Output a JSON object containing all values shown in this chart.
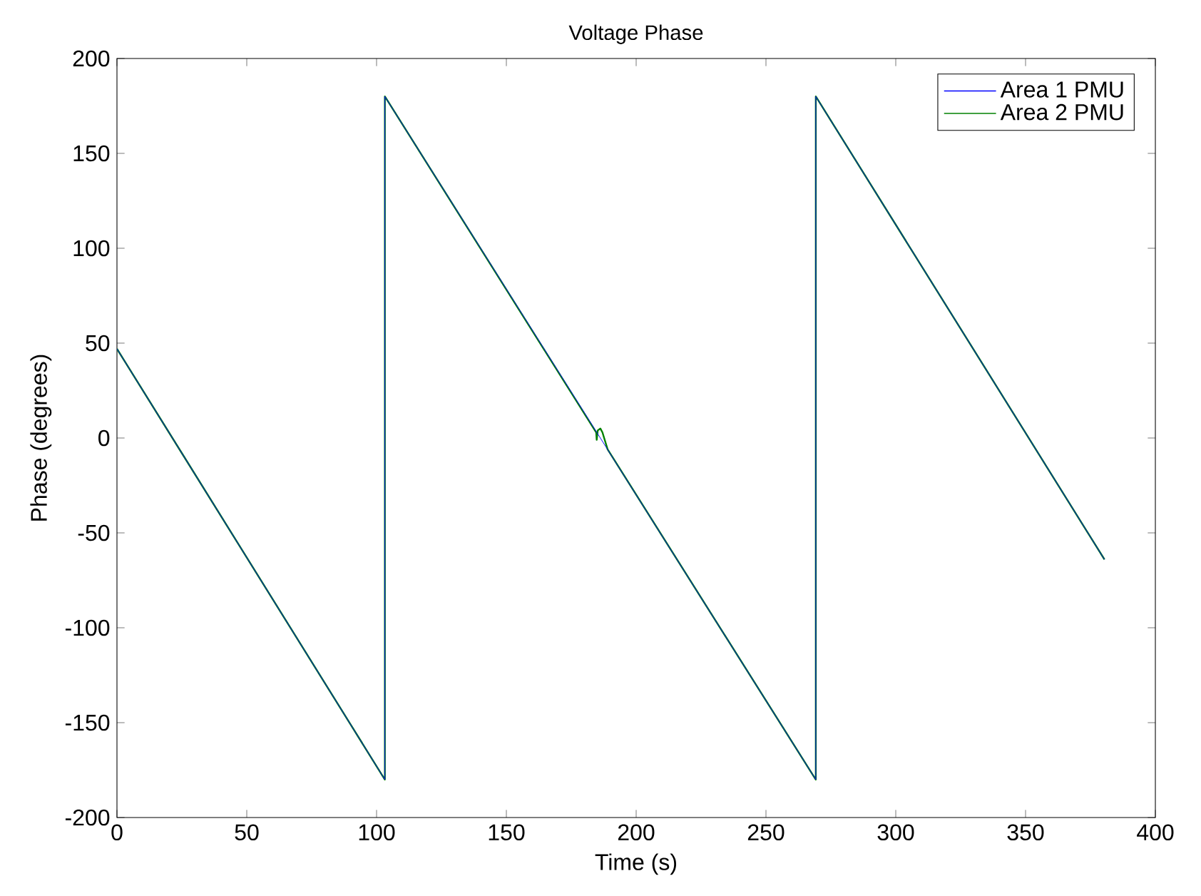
{
  "chart_data": {
    "type": "line",
    "title": "Voltage Phase",
    "xlabel": "Time (s)",
    "ylabel": "Phase (degrees)",
    "xlim": [
      0,
      400
    ],
    "ylim": [
      -200,
      200
    ],
    "xticks": [
      0,
      50,
      100,
      150,
      200,
      250,
      300,
      350,
      400
    ],
    "yticks": [
      -200,
      -150,
      -100,
      -50,
      0,
      50,
      100,
      150,
      200
    ],
    "grid": false,
    "legend": "top right",
    "line_style": "solid",
    "marker": "none",
    "series": [
      {
        "name": "Area 1 PMU",
        "color": "#0000ff",
        "x": [
          0,
          103.2,
          103.2,
          269.2,
          269.2,
          380.4
        ],
        "values": [
          47,
          -180,
          180,
          -180,
          180,
          -64
        ]
      },
      {
        "name": "Area 2 PMU",
        "color": "#008000",
        "x": [
          0,
          103.2,
          103.2,
          184.6,
          184.8,
          185.2,
          186.2,
          187,
          189,
          269.2,
          269.2,
          380.4
        ],
        "values": [
          47,
          -180,
          180,
          3,
          -1,
          4,
          5,
          3,
          -6,
          -180,
          180,
          -64
        ]
      }
    ]
  }
}
